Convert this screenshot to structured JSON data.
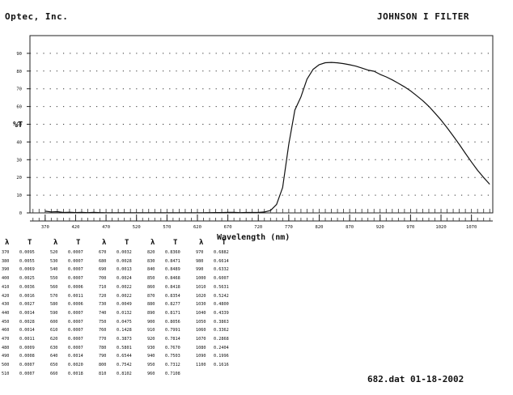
{
  "header": {
    "company": "Optec, Inc.",
    "title": "JOHNSON I FILTER"
  },
  "chart_data": {
    "type": "line",
    "title": "JOHNSON I FILTER",
    "xlabel": "Wavelength (nm)",
    "ylabel": "%T",
    "xlim": [
      345,
      1105
    ],
    "ylim": [
      0,
      100
    ],
    "grid": "dotted horizontal",
    "yticks": [
      0,
      10,
      20,
      30,
      40,
      50,
      60,
      70,
      80,
      90
    ],
    "xticks": [
      370,
      420,
      470,
      520,
      570,
      620,
      670,
      720,
      770,
      820,
      870,
      920,
      970,
      1020,
      1070
    ],
    "series": [
      {
        "x": [
          370,
          380,
          390,
          400,
          410,
          420,
          430,
          440,
          450,
          460,
          470,
          480,
          490,
          500,
          510,
          520,
          530,
          540,
          550,
          560,
          570,
          580,
          590,
          600,
          610,
          620,
          630,
          640,
          650,
          660,
          670,
          680,
          690,
          700,
          710,
          720,
          730,
          740,
          750,
          760,
          770,
          780,
          790,
          800,
          810,
          820,
          830,
          840,
          850,
          860,
          870,
          880,
          890,
          900,
          910,
          920,
          930,
          940,
          950,
          960,
          970,
          980,
          990,
          1000,
          1010,
          1020,
          1030,
          1040,
          1050,
          1060,
          1070,
          1080,
          1090,
          1100
        ],
        "y": [
          0.0095,
          0.0055,
          0.0069,
          0.0025,
          0.0036,
          0.0016,
          0.0027,
          0.0014,
          0.0028,
          0.0014,
          0.0011,
          0.0009,
          0.0008,
          0.0007,
          0.0007,
          0.0007,
          0.0007,
          0.0007,
          0.0007,
          0.0006,
          0.0011,
          0.0006,
          0.0007,
          0.0007,
          0.0007,
          0.0007,
          0.0007,
          0.0014,
          0.002,
          0.0018,
          0.0032,
          0.0028,
          0.0013,
          0.0024,
          0.0022,
          0.0022,
          0.0049,
          0.0132,
          0.0475,
          0.1428,
          0.3873,
          0.5801,
          0.6544,
          0.7542,
          0.8102,
          0.836,
          0.8471,
          0.8489,
          0.8468,
          0.8418,
          0.8354,
          0.8277,
          0.8171,
          0.8056,
          0.7991,
          0.7814,
          0.767,
          0.7503,
          0.7312,
          0.7108,
          0.6882,
          0.6614,
          0.6332,
          0.6007,
          0.5631,
          0.5242,
          0.48,
          0.4339,
          0.3863,
          0.3362,
          0.2868,
          0.2404,
          0.1996,
          0.1616
        ]
      }
    ]
  },
  "table": {
    "headers": {
      "lambda": "λ",
      "t": "T"
    },
    "columns": [
      {
        "wl": [
          "370",
          "380",
          "390",
          "400",
          "410",
          "420",
          "430",
          "440",
          "450",
          "460",
          "470",
          "480",
          "490",
          "500",
          "510"
        ],
        "t": [
          "0.0095",
          "0.0055",
          "0.0069",
          "0.0025",
          "0.0036",
          "0.0016",
          "0.0027",
          "0.0014",
          "0.0028",
          "0.0014",
          "0.0011",
          "0.0009",
          "0.0008",
          "0.0007",
          "0.0007"
        ]
      },
      {
        "wl": [
          "520",
          "530",
          "540",
          "550",
          "560",
          "570",
          "580",
          "590",
          "600",
          "610",
          "620",
          "630",
          "640",
          "650",
          "660"
        ],
        "t": [
          "0.0007",
          "0.0007",
          "0.0007",
          "0.0007",
          "0.0006",
          "0.0011",
          "0.0006",
          "0.0007",
          "0.0007",
          "0.0007",
          "0.0007",
          "0.0007",
          "0.0014",
          "0.0020",
          "0.0018"
        ]
      },
      {
        "wl": [
          "670",
          "680",
          "690",
          "700",
          "710",
          "720",
          "730",
          "740",
          "750",
          "760",
          "770",
          "780",
          "790",
          "800",
          "810"
        ],
        "t": [
          "0.0032",
          "0.0028",
          "0.0013",
          "0.0024",
          "0.0022",
          "0.0022",
          "0.0049",
          "0.0132",
          "0.0475",
          "0.1428",
          "0.3873",
          "0.5801",
          "0.6544",
          "0.7542",
          "0.8102"
        ]
      },
      {
        "wl": [
          "820",
          "830",
          "840",
          "850",
          "860",
          "870",
          "880",
          "890",
          "900",
          "910",
          "920",
          "930",
          "940",
          "950",
          "960"
        ],
        "t": [
          "0.8360",
          "0.8471",
          "0.8489",
          "0.8468",
          "0.8418",
          "0.8354",
          "0.8277",
          "0.8171",
          "0.8056",
          "0.7991",
          "0.7814",
          "0.7670",
          "0.7503",
          "0.7312",
          "0.7108"
        ]
      },
      {
        "wl": [
          "970",
          "980",
          "990",
          "1000",
          "1010",
          "1020",
          "1030",
          "1040",
          "1050",
          "1060",
          "1070",
          "1080",
          "1090",
          "1100"
        ],
        "t": [
          "0.6882",
          "0.6614",
          "0.6332",
          "0.6007",
          "0.5631",
          "0.5242",
          "0.4800",
          "0.4339",
          "0.3863",
          "0.3362",
          "0.2868",
          "0.2404",
          "0.1996",
          "0.1616"
        ]
      }
    ]
  },
  "footer": {
    "file_stamp": "682.dat 01-18-2002"
  }
}
